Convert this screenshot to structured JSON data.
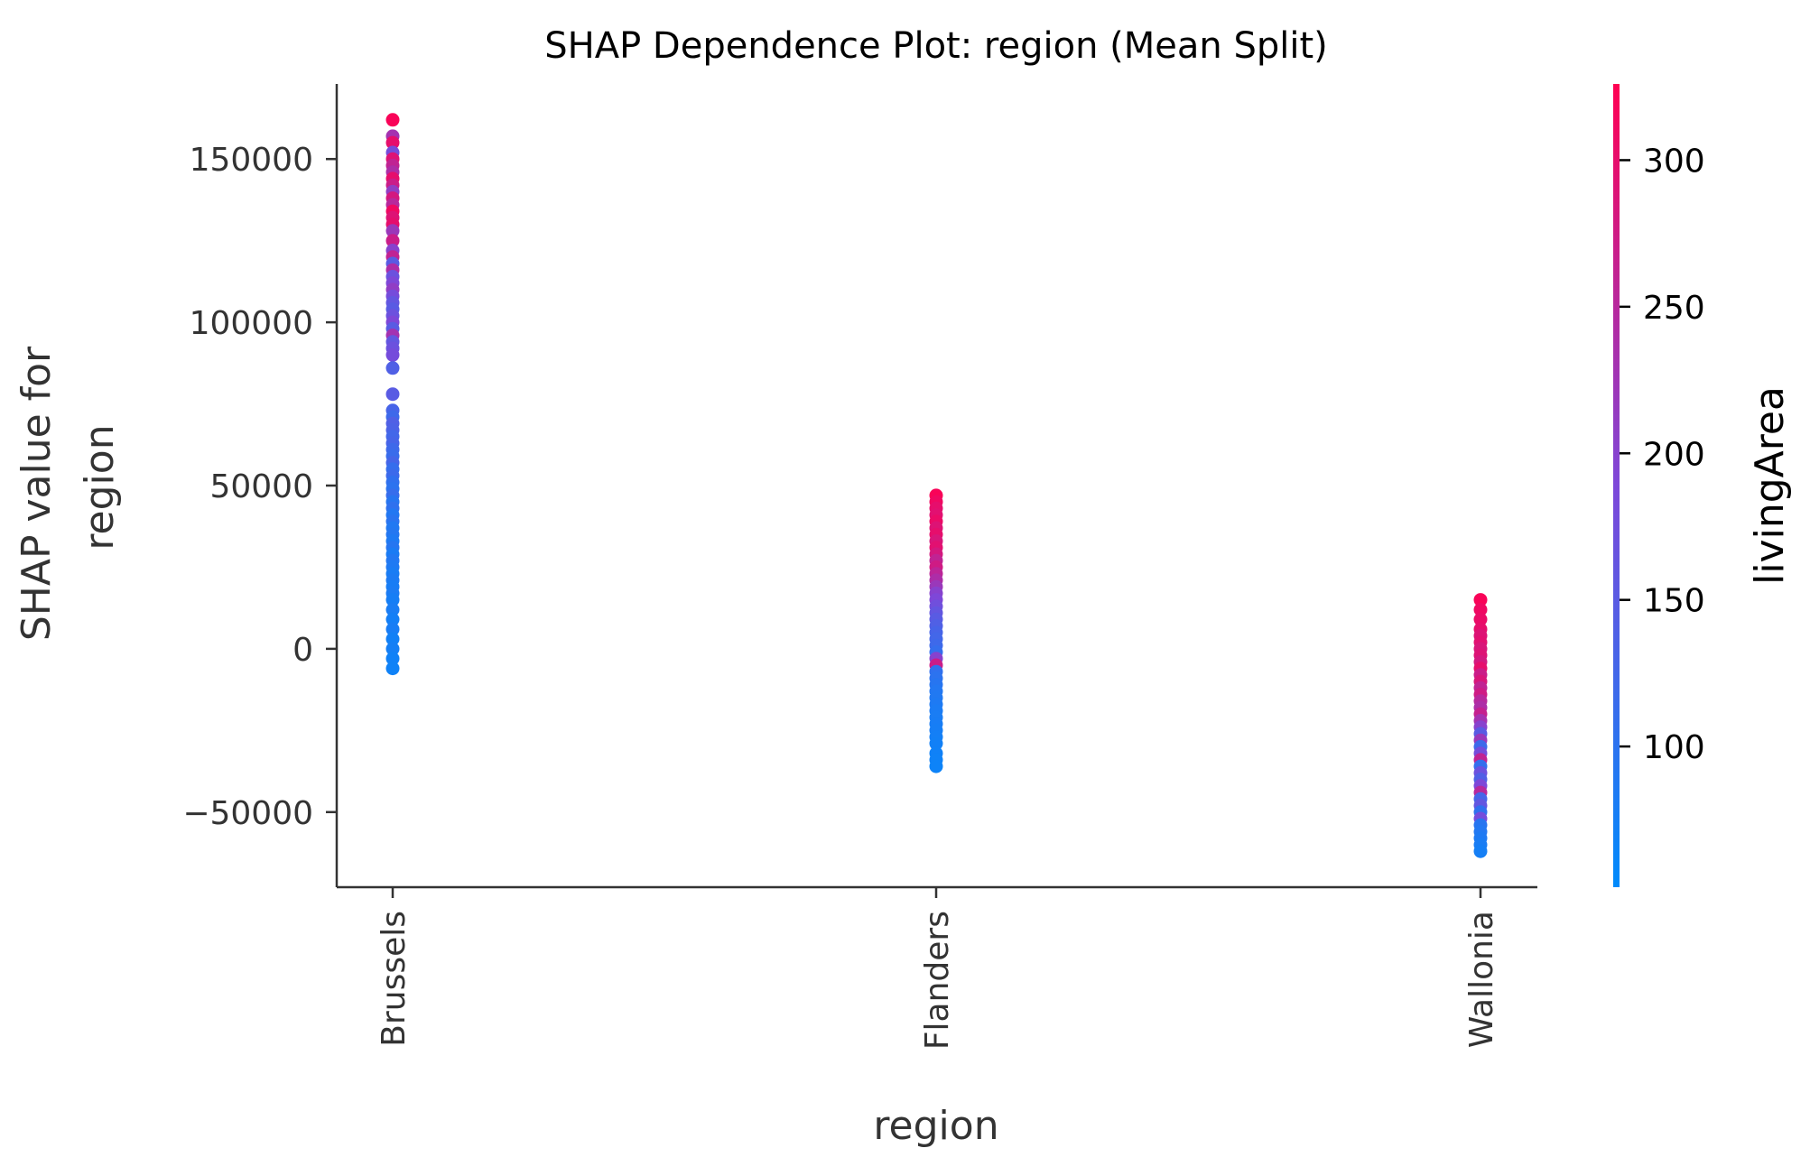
{
  "chart_data": {
    "type": "scatter",
    "title": "SHAP Dependence Plot: region (Mean Split)",
    "xlabel": "region",
    "ylabel_lines": [
      "SHAP value for",
      "region"
    ],
    "categories": [
      "Brussels",
      "Flanders",
      "Wallonia"
    ],
    "ylim": [
      -73000,
      173000
    ],
    "yticks": [
      -50000,
      0,
      50000,
      100000,
      150000
    ],
    "ytick_labels": [
      "−50000",
      "0",
      "50000",
      "100000",
      "150000"
    ],
    "grid": false,
    "colorbar": {
      "label": "livingArea",
      "range": [
        52,
        326
      ],
      "ticks": [
        100,
        150,
        200,
        250,
        300
      ],
      "tick_labels": [
        "100",
        "150",
        "200",
        "250",
        "300"
      ],
      "low_color": "#008afb",
      "mid_color": "#7d48d9",
      "high_color": "#ff0052"
    },
    "series": [
      {
        "category": "Brussels",
        "points": [
          [
            162000,
            320
          ],
          [
            157000,
            230
          ],
          [
            155000,
            300
          ],
          [
            152000,
            180
          ],
          [
            150000,
            290
          ],
          [
            148000,
            260
          ],
          [
            146000,
            240
          ],
          [
            144000,
            300
          ],
          [
            142000,
            270
          ],
          [
            140000,
            210
          ],
          [
            138000,
            280
          ],
          [
            136000,
            250
          ],
          [
            134000,
            310
          ],
          [
            132000,
            290
          ],
          [
            130000,
            300
          ],
          [
            128000,
            220
          ],
          [
            125000,
            270
          ],
          [
            122000,
            200
          ],
          [
            120000,
            260
          ],
          [
            118000,
            150
          ],
          [
            116000,
            240
          ],
          [
            114000,
            170
          ],
          [
            112000,
            190
          ],
          [
            110000,
            210
          ],
          [
            108000,
            180
          ],
          [
            106000,
            160
          ],
          [
            104000,
            150
          ],
          [
            102000,
            170
          ],
          [
            100000,
            190
          ],
          [
            98000,
            150
          ],
          [
            96000,
            230
          ],
          [
            94000,
            160
          ],
          [
            92000,
            170
          ],
          [
            90000,
            180
          ],
          [
            86000,
            140
          ],
          [
            78000,
            150
          ],
          [
            73000,
            130
          ],
          [
            71000,
            120
          ],
          [
            69000,
            140
          ],
          [
            67000,
            135
          ],
          [
            65000,
            125
          ],
          [
            63000,
            130
          ],
          [
            61000,
            120
          ],
          [
            59000,
            115
          ],
          [
            57000,
            128
          ],
          [
            55000,
            110
          ],
          [
            53000,
            118
          ],
          [
            51000,
            105
          ],
          [
            49000,
            100
          ],
          [
            47000,
            112
          ],
          [
            45000,
            95
          ],
          [
            43000,
            104
          ],
          [
            41000,
            90
          ],
          [
            39000,
            98
          ],
          [
            37000,
            88
          ],
          [
            35000,
            92
          ],
          [
            33000,
            85
          ],
          [
            31000,
            94
          ],
          [
            29000,
            82
          ],
          [
            27000,
            90
          ],
          [
            25000,
            86
          ],
          [
            23000,
            80
          ],
          [
            21000,
            84
          ],
          [
            19000,
            78
          ],
          [
            17000,
            82
          ],
          [
            15000,
            76
          ],
          [
            12000,
            80
          ],
          [
            9000,
            74
          ],
          [
            6000,
            78
          ],
          [
            3000,
            72
          ],
          [
            0,
            75
          ],
          [
            -3000,
            70
          ],
          [
            -6000,
            68
          ]
        ]
      },
      {
        "category": "Flanders",
        "points": [
          [
            47000,
            320
          ],
          [
            45000,
            310
          ],
          [
            43000,
            300
          ],
          [
            41000,
            295
          ],
          [
            39000,
            305
          ],
          [
            37000,
            290
          ],
          [
            35000,
            300
          ],
          [
            33000,
            285
          ],
          [
            31000,
            295
          ],
          [
            29000,
            280
          ],
          [
            27000,
            260
          ],
          [
            25000,
            275
          ],
          [
            23000,
            255
          ],
          [
            21000,
            240
          ],
          [
            19000,
            220
          ],
          [
            17000,
            200
          ],
          [
            15000,
            190
          ],
          [
            13000,
            175
          ],
          [
            11000,
            160
          ],
          [
            9000,
            150
          ],
          [
            7000,
            140
          ],
          [
            5000,
            130
          ],
          [
            3000,
            125
          ],
          [
            1000,
            120
          ],
          [
            -1000,
            110
          ],
          [
            -3000,
            200
          ],
          [
            -5000,
            270
          ],
          [
            -7000,
            105
          ],
          [
            -9000,
            100
          ],
          [
            -11000,
            95
          ],
          [
            -13000,
            90
          ],
          [
            -15000,
            88
          ],
          [
            -17000,
            85
          ],
          [
            -19000,
            82
          ],
          [
            -21000,
            80
          ],
          [
            -23000,
            78
          ],
          [
            -25000,
            76
          ],
          [
            -27000,
            74
          ],
          [
            -29000,
            72
          ],
          [
            -32000,
            70
          ],
          [
            -34000,
            68
          ],
          [
            -36000,
            66
          ]
        ]
      },
      {
        "category": "Wallonia",
        "points": [
          [
            15000,
            320
          ],
          [
            12000,
            310
          ],
          [
            9000,
            305
          ],
          [
            6000,
            300
          ],
          [
            4000,
            290
          ],
          [
            2000,
            295
          ],
          [
            0,
            285
          ],
          [
            -2000,
            290
          ],
          [
            -4000,
            280
          ],
          [
            -6000,
            300
          ],
          [
            -8000,
            270
          ],
          [
            -10000,
            285
          ],
          [
            -12000,
            260
          ],
          [
            -14000,
            275
          ],
          [
            -16000,
            250
          ],
          [
            -18000,
            240
          ],
          [
            -20000,
            265
          ],
          [
            -22000,
            230
          ],
          [
            -24000,
            200
          ],
          [
            -26000,
            150
          ],
          [
            -28000,
            220
          ],
          [
            -30000,
            120
          ],
          [
            -32000,
            180
          ],
          [
            -34000,
            260
          ],
          [
            -36000,
            110
          ],
          [
            -38000,
            170
          ],
          [
            -40000,
            140
          ],
          [
            -42000,
            190
          ],
          [
            -44000,
            250
          ],
          [
            -46000,
            130
          ],
          [
            -48000,
            160
          ],
          [
            -50000,
            105
          ],
          [
            -52000,
            180
          ],
          [
            -54000,
            95
          ],
          [
            -56000,
            90
          ],
          [
            -58000,
            85
          ],
          [
            -60000,
            80
          ],
          [
            -62000,
            75
          ]
        ]
      }
    ]
  }
}
